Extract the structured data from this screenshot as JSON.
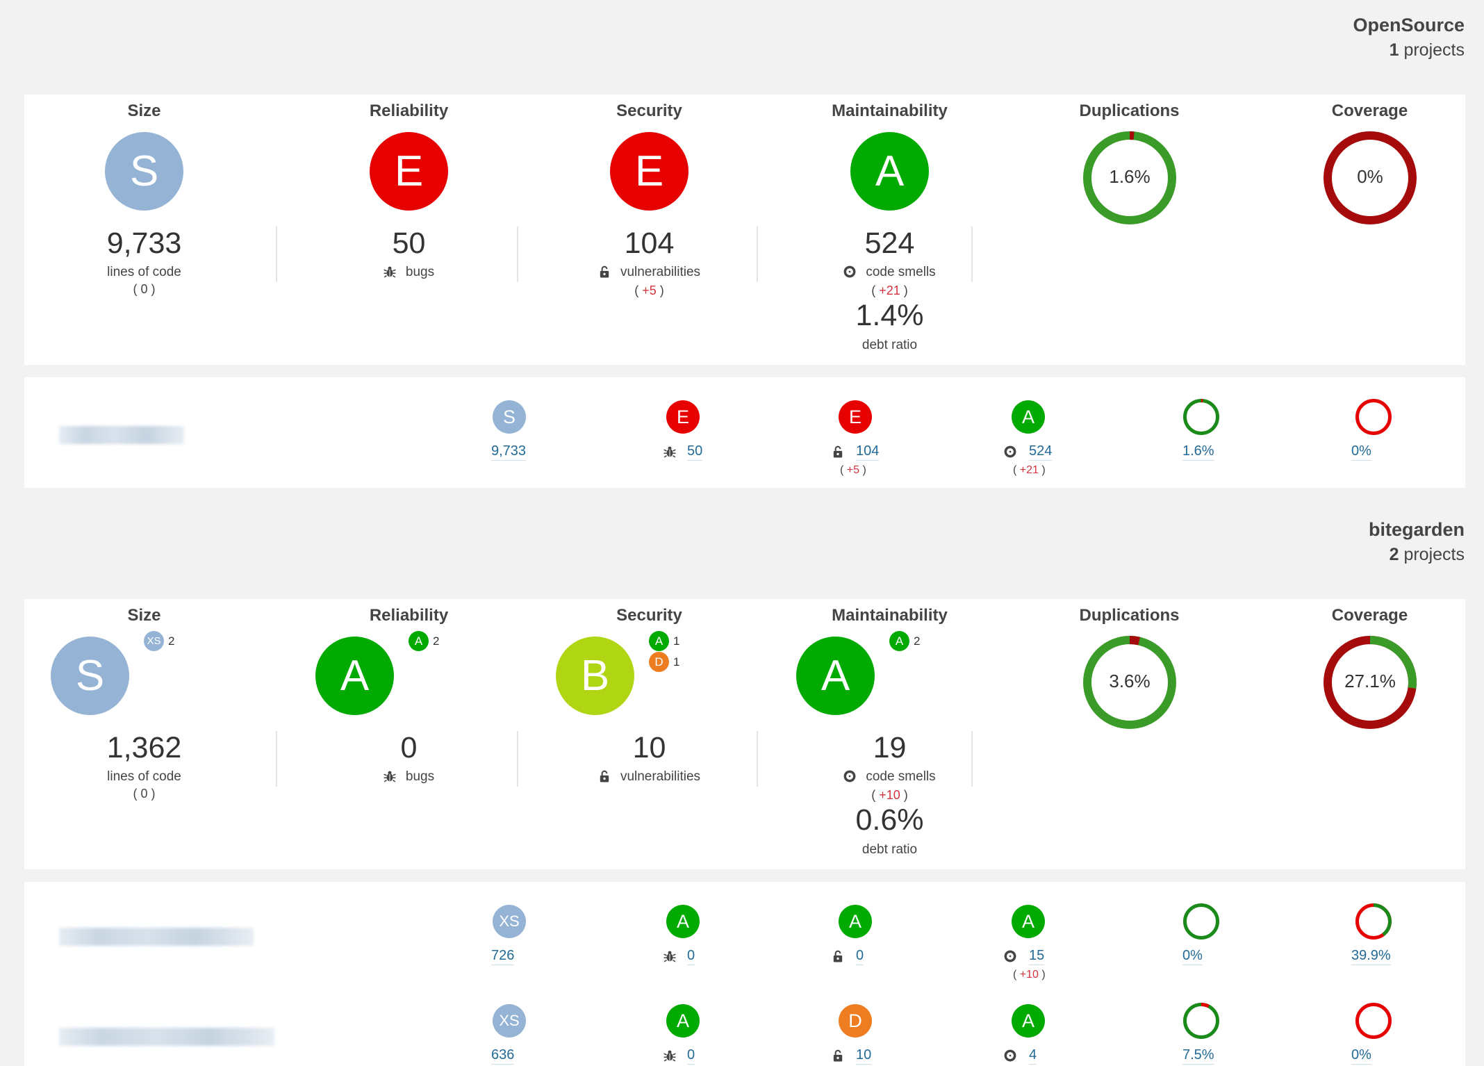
{
  "colors": {
    "S": "#95b3d4",
    "XS": "#95b3d4",
    "A": "#00aa00",
    "B": "#b0d513",
    "D": "#ed7d20",
    "E": "#e60000",
    "green": "#3b9b28",
    "red": "#a50b0b"
  },
  "groups": [
    {
      "name": "OpenSource",
      "count": "1",
      "count_label": "projects",
      "summary": {
        "size": {
          "title": "Size",
          "rating": "S",
          "value": "9,733",
          "label": "lines of code",
          "delta": "( 0 )"
        },
        "reliability": {
          "title": "Reliability",
          "rating": "E",
          "value": "50",
          "label": "bugs"
        },
        "security": {
          "title": "Security",
          "rating": "E",
          "value": "104",
          "label": "vulnerabilities",
          "delta_open": "( ",
          "delta": "+5",
          "delta_close": " )"
        },
        "maintainability": {
          "title": "Maintainability",
          "rating": "A",
          "value": "524",
          "label": "code smells",
          "delta_open": "( ",
          "delta": "+21",
          "delta_close": " )",
          "debt": "1.4%",
          "debt_label": "debt ratio"
        },
        "duplications": {
          "title": "Duplications",
          "value": "1.6%",
          "percent": 1.6
        },
        "coverage": {
          "title": "Coverage",
          "value": "0%",
          "percent": 0
        }
      },
      "projects": [
        {
          "size_rating": "S",
          "size": "9,733",
          "rel_rating": "E",
          "bugs": "50",
          "sec_rating": "E",
          "vulns": "104",
          "sec_delta": "+5",
          "maint_rating": "A",
          "smells": "524",
          "maint_delta": "+21",
          "dup": "1.6%",
          "dup_pct": 1.6,
          "cov": "0%",
          "cov_pct": 0
        }
      ]
    },
    {
      "name": "bitegarden",
      "count": "2",
      "count_label": "projects",
      "summary": {
        "size": {
          "title": "Size",
          "rating": "S",
          "value": "1,362",
          "label": "lines of code",
          "delta": "( 0 )",
          "badges": [
            {
              "rating": "XS",
              "count": "2"
            }
          ]
        },
        "reliability": {
          "title": "Reliability",
          "rating": "A",
          "value": "0",
          "label": "bugs",
          "badges": [
            {
              "rating": "A",
              "count": "2"
            }
          ]
        },
        "security": {
          "title": "Security",
          "rating": "B",
          "value": "10",
          "label": "vulnerabilities",
          "badges": [
            {
              "rating": "A",
              "count": "1"
            },
            {
              "rating": "D",
              "count": "1"
            }
          ]
        },
        "maintainability": {
          "title": "Maintainability",
          "rating": "A",
          "value": "19",
          "label": "code smells",
          "delta_open": "( ",
          "delta": "+10",
          "delta_close": " )",
          "debt": "0.6%",
          "debt_label": "debt ratio",
          "badges": [
            {
              "rating": "A",
              "count": "2"
            }
          ]
        },
        "duplications": {
          "title": "Duplications",
          "value": "3.6%",
          "percent": 3.6
        },
        "coverage": {
          "title": "Coverage",
          "value": "27.1%",
          "percent": 27.1
        }
      },
      "projects": [
        {
          "size_rating": "XS",
          "size": "726",
          "rel_rating": "A",
          "bugs": "0",
          "sec_rating": "A",
          "vulns": "0",
          "maint_rating": "A",
          "smells": "15",
          "maint_delta": "+10",
          "dup": "0%",
          "dup_pct": 0,
          "cov": "39.9%",
          "cov_pct": 39.9
        },
        {
          "size_rating": "XS",
          "size": "636",
          "rel_rating": "A",
          "bugs": "0",
          "sec_rating": "D",
          "vulns": "10",
          "maint_rating": "A",
          "smells": "4",
          "dup": "7.5%",
          "dup_pct": 7.5,
          "cov": "0%",
          "cov_pct": 0
        }
      ]
    }
  ]
}
